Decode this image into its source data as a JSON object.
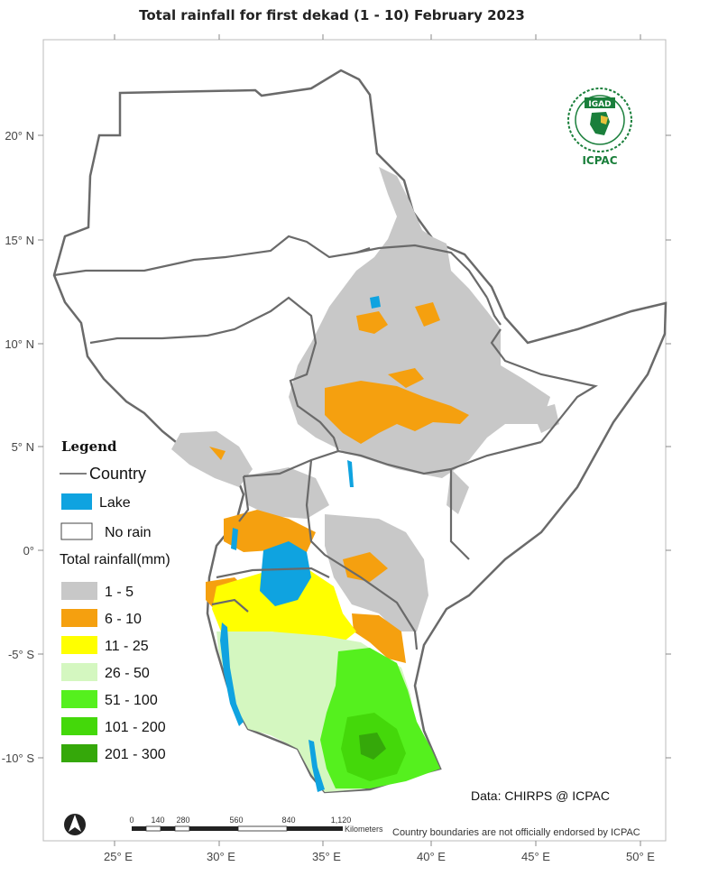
{
  "title": "Total rainfall  for  first  dekad (1 - 10)  February 2023",
  "latitude_ticks": [
    "20° N",
    "15° N",
    "10° N",
    "5° N",
    "0°",
    "-5° S",
    "-10° S"
  ],
  "longitude_ticks": [
    "25° E",
    "30° E",
    "35° E",
    "40° E",
    "45° E",
    "50° E"
  ],
  "legend": {
    "title": "Legend",
    "country_label": "Country",
    "lake_label": "Lake",
    "no_rain_label": "No rain",
    "rainfall_title": "Total rainfall(mm)",
    "classes": [
      {
        "label": "1 - 5",
        "color": "#c8c8c8"
      },
      {
        "label": "6 - 10",
        "color": "#f5a00f"
      },
      {
        "label": "11 - 25",
        "color": "#ffff00"
      },
      {
        "label": "26 - 50",
        "color": "#d4f7c0"
      },
      {
        "label": "51 - 100",
        "color": "#55f01e"
      },
      {
        "label": "101 - 200",
        "color": "#44d80a"
      },
      {
        "label": "201 - 300",
        "color": "#35a80a"
      }
    ],
    "lake_color": "#0fa3e0",
    "country_color": "#666666"
  },
  "logo": {
    "emblem_text": "IGAD",
    "caption": "ICPAC"
  },
  "north_arrow_label": "N",
  "scale_bar": {
    "ticks": [
      "0",
      "140",
      "280",
      "560",
      "840",
      "1,120"
    ],
    "unit": "Kilometers"
  },
  "source": "Data: CHIRPS @ ICPAC",
  "disclaimer": "Country boundaries are not officially endorsed by ICPAC"
}
